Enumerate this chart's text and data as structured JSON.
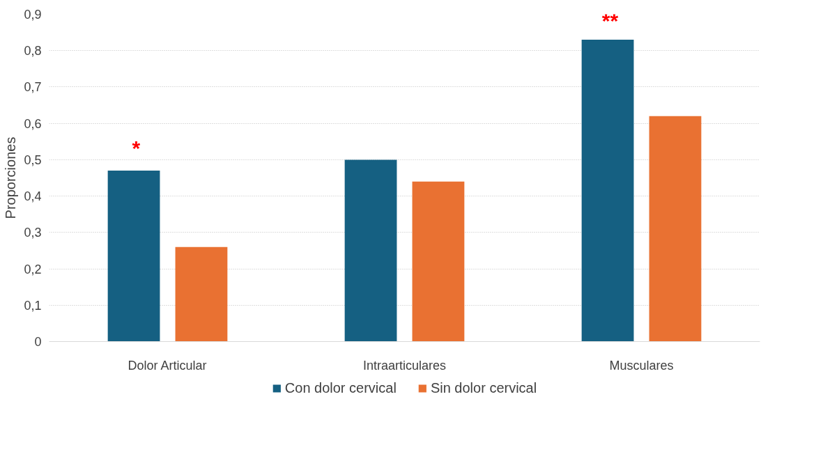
{
  "chart_data": {
    "type": "bar",
    "ylabel": "Proporciones",
    "categories": [
      "Dolor Articular",
      "Intraarticulares",
      "Musculares"
    ],
    "series": [
      {
        "name": "Con dolor cervical",
        "color": "#156082",
        "values": [
          0.47,
          0.5,
          0.83
        ]
      },
      {
        "name": "Sin dolor cervical",
        "color": "#e97132",
        "values": [
          0.26,
          0.44,
          0.62
        ]
      }
    ],
    "ylim": [
      0,
      0.9
    ],
    "yticks": [
      0,
      {
        "value": 0.1,
        "label": "0,1"
      },
      {
        "value": 0.2,
        "label": "0,2"
      },
      {
        "value": 0.3,
        "label": "0,3"
      },
      {
        "value": 0.4,
        "label": "0,4"
      },
      {
        "value": 0.5,
        "label": "0,5"
      },
      {
        "value": 0.6,
        "label": "0,6"
      },
      {
        "value": 0.7,
        "label": "0,7"
      },
      {
        "value": 0.8,
        "label": "0,8"
      },
      {
        "value": 0.9,
        "label": "0,9"
      }
    ],
    "annotations": [
      "*",
      "**"
    ],
    "grid": "y",
    "legend": "bottom"
  }
}
